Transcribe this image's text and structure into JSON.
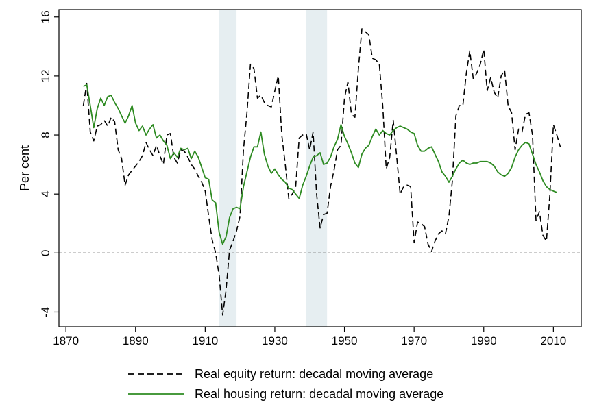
{
  "chart_data": {
    "type": "line",
    "title": "",
    "xlabel": "",
    "ylabel": "Per cent",
    "xlim": [
      1868,
      2018
    ],
    "ylim": [
      -5,
      16.5
    ],
    "x_ticks": [
      1870,
      1890,
      1910,
      1930,
      1950,
      1970,
      1990,
      2010
    ],
    "y_ticks": [
      -4,
      0,
      4,
      8,
      12,
      16
    ],
    "x_tick_labels": [
      "1870",
      "1890",
      "1910",
      "1930",
      "1950",
      "1970",
      "1990",
      "2010"
    ],
    "y_tick_labels": [
      "-4",
      "0",
      "4",
      "8",
      "12",
      "16"
    ],
    "grid": false,
    "reference_line": {
      "y": 0,
      "style": "dashed",
      "color": "#777777"
    },
    "shaded_regions": [
      {
        "from": 1914,
        "to": 1919,
        "color": "#e6eef1"
      },
      {
        "from": 1939,
        "to": 1945,
        "color": "#e6eef1"
      }
    ],
    "legend_position": "bottom",
    "series": [
      {
        "name": "Real equity return: decadal moving average",
        "color": "#000000",
        "style": "dashed",
        "points": [
          [
            1875,
            10.0
          ],
          [
            1876,
            11.5
          ],
          [
            1877,
            8.2
          ],
          [
            1878,
            7.6
          ],
          [
            1879,
            8.6
          ],
          [
            1880,
            8.7
          ],
          [
            1881,
            9.0
          ],
          [
            1882,
            8.6
          ],
          [
            1883,
            9.2
          ],
          [
            1884,
            8.9
          ],
          [
            1885,
            7.0
          ],
          [
            1886,
            6.4
          ],
          [
            1887,
            4.6
          ],
          [
            1888,
            5.3
          ],
          [
            1889,
            5.6
          ],
          [
            1890,
            5.9
          ],
          [
            1891,
            6.2
          ],
          [
            1892,
            6.6
          ],
          [
            1893,
            7.5
          ],
          [
            1894,
            7.0
          ],
          [
            1895,
            6.6
          ],
          [
            1896,
            7.3
          ],
          [
            1897,
            6.6
          ],
          [
            1898,
            6.0
          ],
          [
            1899,
            8.0
          ],
          [
            1900,
            8.1
          ],
          [
            1901,
            6.5
          ],
          [
            1902,
            6.1
          ],
          [
            1903,
            7.0
          ],
          [
            1904,
            6.9
          ],
          [
            1905,
            6.5
          ],
          [
            1906,
            6.0
          ],
          [
            1907,
            5.7
          ],
          [
            1908,
            5.2
          ],
          [
            1909,
            4.8
          ],
          [
            1910,
            4.2
          ],
          [
            1911,
            2.5
          ],
          [
            1912,
            0.9
          ],
          [
            1913,
            0.0
          ],
          [
            1914,
            -1.5
          ],
          [
            1915,
            -4.2
          ],
          [
            1916,
            -2.5
          ],
          [
            1917,
            0.2
          ],
          [
            1918,
            0.8
          ],
          [
            1919,
            1.5
          ],
          [
            1920,
            2.5
          ],
          [
            1921,
            7.0
          ],
          [
            1922,
            9.5
          ],
          [
            1923,
            12.8
          ],
          [
            1924,
            12.5
          ],
          [
            1925,
            10.5
          ],
          [
            1926,
            10.7
          ],
          [
            1927,
            10.2
          ],
          [
            1928,
            10.0
          ],
          [
            1929,
            9.9
          ],
          [
            1930,
            11.0
          ],
          [
            1931,
            12.0
          ],
          [
            1932,
            8.0
          ],
          [
            1933,
            6.0
          ],
          [
            1934,
            3.7
          ],
          [
            1935,
            4.0
          ],
          [
            1936,
            4.5
          ],
          [
            1937,
            7.8
          ],
          [
            1938,
            8.0
          ],
          [
            1939,
            8.1
          ],
          [
            1940,
            7.0
          ],
          [
            1941,
            8.2
          ],
          [
            1942,
            4.0
          ],
          [
            1943,
            1.7
          ],
          [
            1944,
            2.6
          ],
          [
            1945,
            2.7
          ],
          [
            1946,
            4.5
          ],
          [
            1947,
            5.6
          ],
          [
            1948,
            7.0
          ],
          [
            1949,
            7.3
          ],
          [
            1950,
            10.5
          ],
          [
            1951,
            11.6
          ],
          [
            1952,
            9.4
          ],
          [
            1953,
            9.2
          ],
          [
            1954,
            12.5
          ],
          [
            1955,
            15.2
          ],
          [
            1956,
            15.0
          ],
          [
            1957,
            14.8
          ],
          [
            1958,
            13.2
          ],
          [
            1959,
            13.1
          ],
          [
            1960,
            12.8
          ],
          [
            1961,
            10.0
          ],
          [
            1962,
            5.7
          ],
          [
            1963,
            6.5
          ],
          [
            1964,
            9.0
          ],
          [
            1965,
            6.5
          ],
          [
            1966,
            4.0
          ],
          [
            1967,
            4.5
          ],
          [
            1968,
            4.6
          ],
          [
            1969,
            4.5
          ],
          [
            1970,
            0.7
          ],
          [
            1971,
            2.1
          ],
          [
            1972,
            2.0
          ],
          [
            1973,
            1.8
          ],
          [
            1974,
            0.6
          ],
          [
            1975,
            0.1
          ],
          [
            1976,
            0.8
          ],
          [
            1977,
            1.3
          ],
          [
            1978,
            1.5
          ],
          [
            1979,
            1.3
          ],
          [
            1980,
            2.5
          ],
          [
            1981,
            4.9
          ],
          [
            1982,
            9.3
          ],
          [
            1983,
            10.0
          ],
          [
            1984,
            10.0
          ],
          [
            1985,
            12.2
          ],
          [
            1986,
            13.7
          ],
          [
            1987,
            11.8
          ],
          [
            1988,
            12.2
          ],
          [
            1989,
            12.8
          ],
          [
            1990,
            13.8
          ],
          [
            1991,
            11.0
          ],
          [
            1992,
            11.9
          ],
          [
            1993,
            10.9
          ],
          [
            1994,
            10.5
          ],
          [
            1995,
            12.0
          ],
          [
            1996,
            12.4
          ],
          [
            1997,
            10.0
          ],
          [
            1998,
            9.5
          ],
          [
            1999,
            7.0
          ],
          [
            2000,
            8.4
          ],
          [
            2001,
            8.2
          ],
          [
            2002,
            9.4
          ],
          [
            2003,
            9.5
          ],
          [
            2004,
            8.0
          ],
          [
            2005,
            2.2
          ],
          [
            2006,
            2.8
          ],
          [
            2007,
            1.2
          ],
          [
            2008,
            0.8
          ],
          [
            2009,
            4.0
          ],
          [
            2010,
            8.7
          ],
          [
            2011,
            8.0
          ],
          [
            2012,
            7.2
          ]
        ]
      },
      {
        "name": "Real housing return: decadal moving average",
        "color": "#2e8b22",
        "style": "solid",
        "points": [
          [
            1875,
            11.3
          ],
          [
            1876,
            11.4
          ],
          [
            1877,
            10.0
          ],
          [
            1878,
            8.5
          ],
          [
            1879,
            9.8
          ],
          [
            1880,
            10.5
          ],
          [
            1881,
            10.0
          ],
          [
            1882,
            10.6
          ],
          [
            1883,
            10.7
          ],
          [
            1884,
            10.2
          ],
          [
            1885,
            9.8
          ],
          [
            1886,
            9.3
          ],
          [
            1887,
            8.8
          ],
          [
            1888,
            9.3
          ],
          [
            1889,
            10.0
          ],
          [
            1890,
            8.8
          ],
          [
            1891,
            8.3
          ],
          [
            1892,
            8.6
          ],
          [
            1893,
            8.0
          ],
          [
            1894,
            8.4
          ],
          [
            1895,
            8.7
          ],
          [
            1896,
            7.8
          ],
          [
            1897,
            8.0
          ],
          [
            1898,
            7.6
          ],
          [
            1899,
            7.3
          ],
          [
            1900,
            6.4
          ],
          [
            1901,
            6.8
          ],
          [
            1902,
            6.5
          ],
          [
            1903,
            7.1
          ],
          [
            1904,
            7.0
          ],
          [
            1905,
            7.1
          ],
          [
            1906,
            6.4
          ],
          [
            1907,
            6.9
          ],
          [
            1908,
            6.5
          ],
          [
            1909,
            5.8
          ],
          [
            1910,
            5.1
          ],
          [
            1911,
            5.0
          ],
          [
            1912,
            3.6
          ],
          [
            1913,
            3.4
          ],
          [
            1914,
            1.4
          ],
          [
            1915,
            0.6
          ],
          [
            1916,
            1.1
          ],
          [
            1917,
            2.4
          ],
          [
            1918,
            3.0
          ],
          [
            1919,
            3.1
          ],
          [
            1920,
            3.0
          ],
          [
            1921,
            4.5
          ],
          [
            1922,
            5.5
          ],
          [
            1923,
            6.5
          ],
          [
            1924,
            7.2
          ],
          [
            1925,
            7.2
          ],
          [
            1926,
            8.2
          ],
          [
            1927,
            6.7
          ],
          [
            1928,
            5.9
          ],
          [
            1929,
            5.4
          ],
          [
            1930,
            5.7
          ],
          [
            1931,
            5.3
          ],
          [
            1932,
            5.0
          ],
          [
            1933,
            4.8
          ],
          [
            1934,
            4.4
          ],
          [
            1935,
            4.3
          ],
          [
            1936,
            4.0
          ],
          [
            1937,
            3.7
          ],
          [
            1938,
            4.6
          ],
          [
            1939,
            5.2
          ],
          [
            1940,
            5.9
          ],
          [
            1941,
            6.5
          ],
          [
            1942,
            6.6
          ],
          [
            1943,
            6.8
          ],
          [
            1944,
            6.0
          ],
          [
            1945,
            6.1
          ],
          [
            1946,
            6.5
          ],
          [
            1947,
            7.2
          ],
          [
            1948,
            7.7
          ],
          [
            1949,
            8.7
          ],
          [
            1950,
            7.9
          ],
          [
            1951,
            7.4
          ],
          [
            1952,
            6.8
          ],
          [
            1953,
            6.1
          ],
          [
            1954,
            5.8
          ],
          [
            1955,
            6.7
          ],
          [
            1956,
            7.1
          ],
          [
            1957,
            7.3
          ],
          [
            1958,
            7.9
          ],
          [
            1959,
            8.4
          ],
          [
            1960,
            8.0
          ],
          [
            1961,
            8.3
          ],
          [
            1962,
            8.1
          ],
          [
            1963,
            8.0
          ],
          [
            1964,
            8.3
          ],
          [
            1965,
            8.5
          ],
          [
            1966,
            8.6
          ],
          [
            1967,
            8.5
          ],
          [
            1968,
            8.4
          ],
          [
            1969,
            8.2
          ],
          [
            1970,
            8.1
          ],
          [
            1971,
            7.3
          ],
          [
            1972,
            6.9
          ],
          [
            1973,
            6.9
          ],
          [
            1974,
            7.1
          ],
          [
            1975,
            7.2
          ],
          [
            1976,
            6.7
          ],
          [
            1977,
            6.2
          ],
          [
            1978,
            5.5
          ],
          [
            1979,
            5.2
          ],
          [
            1980,
            4.8
          ],
          [
            1981,
            5.2
          ],
          [
            1982,
            5.7
          ],
          [
            1983,
            6.1
          ],
          [
            1984,
            6.3
          ],
          [
            1985,
            6.1
          ],
          [
            1986,
            6.0
          ],
          [
            1987,
            6.1
          ],
          [
            1988,
            6.1
          ],
          [
            1989,
            6.2
          ],
          [
            1990,
            6.2
          ],
          [
            1991,
            6.2
          ],
          [
            1992,
            6.1
          ],
          [
            1993,
            5.9
          ],
          [
            1994,
            5.5
          ],
          [
            1995,
            5.3
          ],
          [
            1996,
            5.2
          ],
          [
            1997,
            5.4
          ],
          [
            1998,
            5.8
          ],
          [
            1999,
            6.5
          ],
          [
            2000,
            7.0
          ],
          [
            2001,
            7.3
          ],
          [
            2002,
            7.5
          ],
          [
            2003,
            7.4
          ],
          [
            2004,
            6.7
          ],
          [
            2005,
            6.0
          ],
          [
            2006,
            5.5
          ],
          [
            2007,
            4.9
          ],
          [
            2008,
            4.5
          ],
          [
            2009,
            4.3
          ],
          [
            2010,
            4.2
          ],
          [
            2011,
            4.1
          ]
        ]
      }
    ]
  }
}
